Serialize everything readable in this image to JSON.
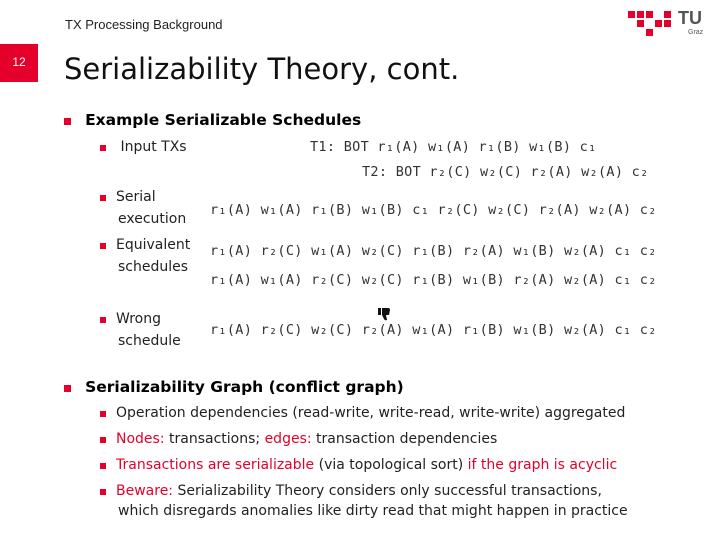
{
  "header": {
    "section": "TX Processing Background",
    "logo_text": "TU",
    "logo_sub": "Graz"
  },
  "slide": {
    "number": "12",
    "title": "Serializability Theory, cont."
  },
  "example": {
    "heading": "Example Serializable Schedules",
    "input_label": "Input TXs",
    "t1": "T1: BOT r₁(A)    w₁(A)  r₁(B) w₁(B) c₁",
    "t2": "T2: BOT r₂(C) w₂(C) r₂(A) w₂(A) c₂",
    "serial_label_1": "Serial",
    "serial_label_2": "execution",
    "serial": "r₁(A) w₁(A) r₁(B) w₁(B) c₁ r₂(C) w₂(C) r₂(A) w₂(A) c₂",
    "equiv_label_1": "Equivalent",
    "equiv_label_2": "schedules",
    "equiv1": "r₁(A) r₂(C) w₁(A) w₂(C) r₁(B) r₂(A) w₁(B) w₂(A) c₁ c₂",
    "equiv2": "r₁(A) w₁(A) r₂(C) w₂(C) r₁(B) w₁(B) r₂(A) w₂(A) c₁ c₂",
    "wrong_label_1": "Wrong",
    "wrong_label_2": "schedule",
    "wrong": "r₁(A) r₂(C) w₂(C) r₂(A) w₁(A) r₁(B) w₁(B) w₂(A) c₁ c₂"
  },
  "graph": {
    "heading": "Serializability Graph (conflict graph)",
    "b1": "Operation dependencies (read-write, write-read, write-write) aggregated",
    "b2_red1": "Nodes:",
    "b2_t1": " transactions; ",
    "b2_red2": "edges:",
    "b2_t2": " transaction dependencies",
    "b3_red1": "Transactions are serializable",
    "b3_t1": " (via topological sort) ",
    "b3_red2": "if the graph is acyclic",
    "b4_red": "Beware:",
    "b4_t1": " Serializability Theory considers only successful transactions,",
    "b4_t2": "which disregards anomalies like dirty read that might happen in practice"
  },
  "colors": {
    "accent": "#e4002b"
  }
}
